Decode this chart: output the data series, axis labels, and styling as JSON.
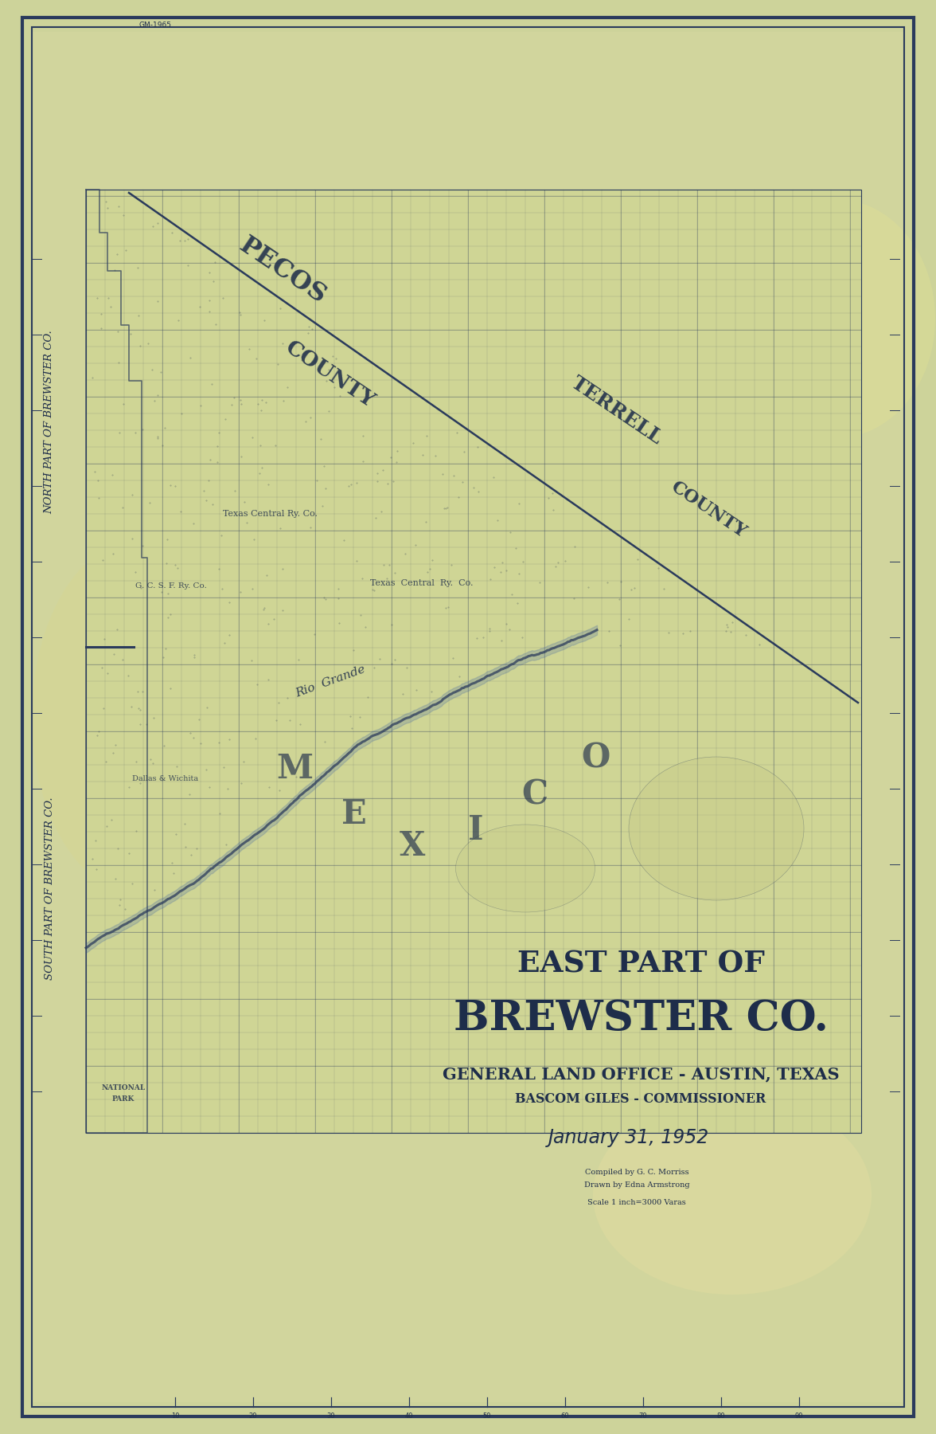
{
  "bg_color": "#cdd39a",
  "paper_color": "#d4d8a0",
  "border_color": "#2a3a5c",
  "text_color": "#1e2d4a",
  "title_line1": "EAST PART OF",
  "title_line2": "BREWSTER CO.",
  "subtitle1": "GENERAL LAND OFFICE - AUSTIN, TEXAS",
  "subtitle2": "BASCOM GILES - COMMISSIONER",
  "date_text": "January 31, 1952",
  "compiled_text": "Compiled by G. C. Morriss",
  "drawn_text": "Drawn by Edna Armstrong",
  "scale_text": "Scale 1 inch=3000 Varas",
  "left_label_north": "NORTH PART OF BREWSTER CO.",
  "left_label_south": "SOUTH PART OF BREWSTER CO.",
  "pecos_label": "PECOS",
  "county_label1": "COUNTY",
  "terrell_label": "TERRELL",
  "county_label2": "COUNTY",
  "mexico_letters": [
    "M",
    "E",
    "X",
    "I",
    "C",
    "O"
  ],
  "rio_grande_label": "Rio  Grande",
  "fig_width": 11.76,
  "fig_height": 18.0
}
